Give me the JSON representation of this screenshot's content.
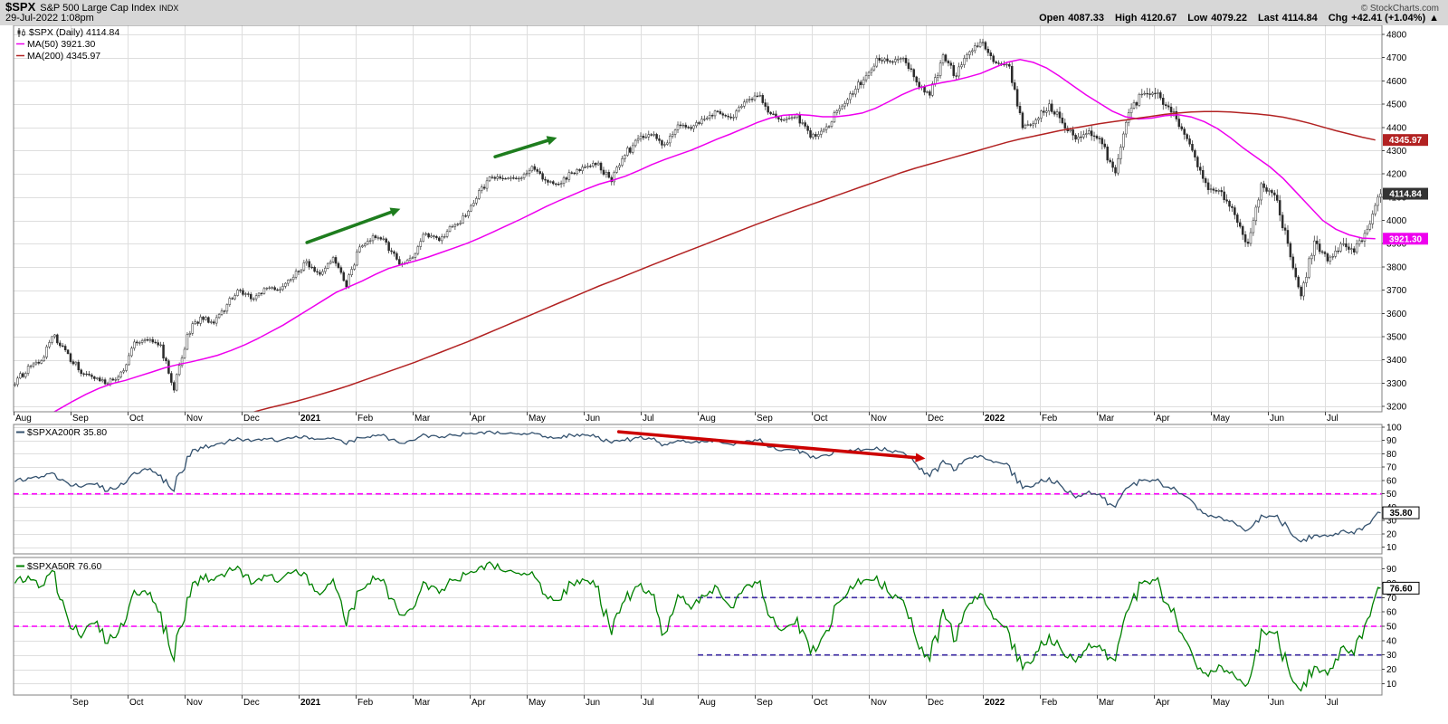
{
  "header": {
    "symbol": "$SPX",
    "index_name": "S&P 500 Large Cap Index",
    "exchange": "INDX",
    "datetime": "29-Jul-2022 1:08pm",
    "copyright": "© StockCharts.com",
    "quote": [
      {
        "label": "Open",
        "value": "4087.33"
      },
      {
        "label": "High",
        "value": "4120.67"
      },
      {
        "label": "Low",
        "value": "4079.22"
      },
      {
        "label": "Last",
        "value": "4114.84"
      },
      {
        "label": "Chg",
        "value": "+42.41 (+1.04%)",
        "arrow": "▲"
      }
    ]
  },
  "colors": {
    "background": "#ffffff",
    "header_bg": "#d7d7d7",
    "grid": "#dedede",
    "panel_border": "#808080",
    "candle": "#2a2a2a",
    "ma50": "#ee00ee",
    "ma200": "#b22222",
    "a200r_line": "#33516e",
    "a50r_line": "#008000",
    "dash_magenta": "#ff00ff",
    "dash_purple": "#3f2da5",
    "arrow_green": "#1e7d1e",
    "arrow_red": "#cc0000"
  },
  "chart_data": [
    {
      "type": "candlestick",
      "title": "$SPX (Daily)",
      "legend": {
        "series": "$SPX (Daily) 4114.84",
        "ma50": "MA(50) 3921.30",
        "ma200": "MA(200) 4345.97"
      },
      "ylim": [
        3177,
        4839
      ],
      "ytick_min": 3200,
      "ytick_max": 4800,
      "ytick_step": 100,
      "x_months": [
        "Aug",
        "Sep",
        "Oct",
        "Nov",
        "Dec",
        "2021",
        "Feb",
        "Mar",
        "Apr",
        "May",
        "Jun",
        "Jul",
        "Aug",
        "Sep",
        "Oct",
        "Nov",
        "Dec",
        "2022",
        "Feb",
        "Mar",
        "Apr",
        "May",
        "Jun",
        "Jul"
      ],
      "weekly_close": [
        3294,
        3373,
        3397,
        3508,
        3427,
        3341,
        3319,
        3298,
        3348,
        3477,
        3484,
        3465,
        3270,
        3509,
        3585,
        3558,
        3638,
        3699,
        3663,
        3709,
        3703,
        3756,
        3824,
        3768,
        3841,
        3714,
        3886,
        3934,
        3906,
        3811,
        3841,
        3943,
        3913,
        3974,
        4019,
        4128,
        4185,
        4180,
        4181,
        4232,
        4173,
        4155,
        4204,
        4229,
        4247,
        4166,
        4280,
        4352,
        4369,
        4327,
        4411,
        4395,
        4436,
        4468,
        4441,
        4509,
        4535,
        4458,
        4433,
        4455,
        4357,
        4391,
        4471,
        4545,
        4605,
        4698,
        4683,
        4698,
        4595,
        4538,
        4712,
        4621,
        4726,
        4766,
        4677,
        4663,
        4398,
        4432,
        4501,
        4419,
        4349,
        4385,
        4329,
        4204,
        4463,
        4543,
        4546,
        4488,
        4393,
        4272,
        4132,
        4123,
        4024,
        3901,
        4158,
        4109,
        3901,
        3675,
        3912,
        3825,
        3899,
        3863,
        3962,
        4114.84
      ],
      "ma50": [
        3105,
        3130,
        3158,
        3190,
        3222,
        3252,
        3278,
        3298,
        3312,
        3330,
        3348,
        3366,
        3380,
        3392,
        3405,
        3420,
        3440,
        3463,
        3490,
        3520,
        3550,
        3585,
        3620,
        3655,
        3690,
        3715,
        3740,
        3768,
        3793,
        3810,
        3825,
        3842,
        3862,
        3882,
        3902,
        3926,
        3952,
        3978,
        4004,
        4032,
        4060,
        4086,
        4110,
        4134,
        4156,
        4172,
        4190,
        4214,
        4240,
        4262,
        4282,
        4302,
        4326,
        4350,
        4372,
        4396,
        4420,
        4440,
        4452,
        4456,
        4452,
        4446,
        4446,
        4452,
        4462,
        4482,
        4510,
        4540,
        4565,
        4580,
        4592,
        4602,
        4616,
        4632,
        4656,
        4680,
        4692,
        4680,
        4656,
        4620,
        4580,
        4540,
        4505,
        4470,
        4446,
        4436,
        4440,
        4450,
        4455,
        4445,
        4425,
        4395,
        4355,
        4310,
        4270,
        4230,
        4180,
        4120,
        4060,
        4000,
        3962,
        3938,
        3924,
        3921.3
      ],
      "ma200": [
        null,
        null,
        null,
        null,
        null,
        null,
        null,
        null,
        null,
        null,
        null,
        null,
        null,
        null,
        null,
        null,
        null,
        3165,
        3180,
        3195,
        3208,
        3222,
        3238,
        3255,
        3272,
        3290,
        3310,
        3330,
        3350,
        3370,
        3390,
        3412,
        3434,
        3456,
        3478,
        3502,
        3526,
        3550,
        3574,
        3598,
        3622,
        3646,
        3670,
        3694,
        3718,
        3740,
        3762,
        3785,
        3808,
        3830,
        3852,
        3874,
        3896,
        3918,
        3940,
        3962,
        3984,
        4005,
        4026,
        4046,
        4066,
        4086,
        4106,
        4126,
        4146,
        4166,
        4186,
        4206,
        4224,
        4240,
        4256,
        4272,
        4288,
        4304,
        4320,
        4336,
        4350,
        4362,
        4374,
        4386,
        4396,
        4406,
        4416,
        4424,
        4432,
        4440,
        4448,
        4456,
        4462,
        4466,
        4468,
        4468,
        4466,
        4462,
        4458,
        4452,
        4444,
        4432,
        4418,
        4402,
        4386,
        4372,
        4358,
        4345.97
      ],
      "last_price_labels": [
        {
          "text": "4345.97",
          "value": 4345.97,
          "bg": "#b22222"
        },
        {
          "text": "4114.84",
          "value": 4114.84,
          "bg": "#333333"
        },
        {
          "text": "3921.30",
          "value": 3921.3,
          "bg": "#ee00ee"
        }
      ],
      "annotations": [
        {
          "color": "green",
          "x1_week": 21.8,
          "v1": 3905,
          "x2_week": 28.9,
          "v2": 4050
        },
        {
          "color": "green",
          "x1_week": 36.1,
          "v1": 4274,
          "x2_week": 40.8,
          "v2": 4356
        }
      ]
    },
    {
      "type": "line",
      "title": "$SPXA200R",
      "legend": "$SPXA200R 35.80",
      "last_value": 35.8,
      "last_label": "35.80",
      "ylim": [
        5,
        102
      ],
      "ytick_min": 10,
      "ytick_max": 100,
      "ytick_step": 10,
      "weekly": [
        59,
        62,
        63,
        65,
        58,
        55,
        57,
        52,
        58,
        66,
        68,
        64,
        52,
        78,
        85,
        86,
        89,
        91,
        90,
        91,
        90,
        92,
        93,
        91,
        92,
        87,
        92,
        94,
        93,
        88,
        90,
        94,
        92,
        94,
        95,
        96,
        96,
        95,
        95,
        96,
        93,
        92,
        94,
        94,
        93,
        88,
        90,
        92,
        91,
        87,
        90,
        88,
        89,
        90,
        87,
        89,
        90,
        85,
        83,
        84,
        77,
        79,
        82,
        83,
        83,
        85,
        82,
        81,
        72,
        63,
        75,
        68,
        77,
        78,
        74,
        71,
        54,
        58,
        62,
        55,
        47,
        52,
        47,
        40,
        55,
        60,
        60,
        55,
        50,
        42,
        33,
        32,
        28,
        23,
        34,
        33,
        25,
        14,
        19,
        18,
        22,
        20,
        27,
        35.8
      ],
      "hlines": [
        {
          "value": 50,
          "color": "#ff00ff",
          "dash": true,
          "from_frac": 0
        }
      ],
      "annotations": [
        {
          "color": "red",
          "x1_week": 45.5,
          "v1": 96.5,
          "x2_week": 68.8,
          "v2": 76.5
        }
      ]
    },
    {
      "type": "line",
      "title": "$SPXA50R",
      "legend": "$SPXA50R 76.60",
      "last_value": 76.6,
      "last_label": "76.60",
      "ylim": [
        2,
        98
      ],
      "ytick_min": 10,
      "ytick_max": 90,
      "ytick_step": 10,
      "x_months": [
        "Sep",
        "Oct",
        "Nov",
        "Dec",
        "2021",
        "Feb",
        "Mar",
        "Apr",
        "May",
        "Jun",
        "Jul",
        "Aug",
        "Sep",
        "Oct",
        "Nov",
        "Dec",
        "2022",
        "Feb",
        "Mar",
        "Apr",
        "May",
        "Jun",
        "Jul"
      ],
      "weekly": [
        80,
        85,
        78,
        88,
        55,
        42,
        52,
        38,
        52,
        75,
        72,
        60,
        26,
        70,
        85,
        82,
        88,
        90,
        80,
        85,
        82,
        88,
        86,
        72,
        83,
        50,
        75,
        85,
        78,
        58,
        62,
        80,
        73,
        82,
        86,
        91,
        93,
        88,
        87,
        88,
        72,
        68,
        80,
        82,
        78,
        44,
        68,
        78,
        72,
        45,
        72,
        62,
        71,
        77,
        63,
        77,
        80,
        56,
        48,
        56,
        31,
        44,
        66,
        78,
        82,
        85,
        72,
        68,
        40,
        26,
        62,
        40,
        66,
        72,
        55,
        45,
        20,
        32,
        44,
        32,
        25,
        38,
        33,
        26,
        62,
        80,
        82,
        65,
        45,
        25,
        15,
        22,
        15,
        10,
        48,
        45,
        22,
        5,
        22,
        16,
        35,
        30,
        55,
        76.6
      ],
      "hlines": [
        {
          "value": 50,
          "color": "#ff00ff",
          "dash": true,
          "from_frac": 0
        },
        {
          "value": 70,
          "color": "#3f2da5",
          "dash": true,
          "from_frac": 0.5
        },
        {
          "value": 30,
          "color": "#3f2da5",
          "dash": true,
          "from_frac": 0.5
        }
      ],
      "annotations": []
    }
  ]
}
